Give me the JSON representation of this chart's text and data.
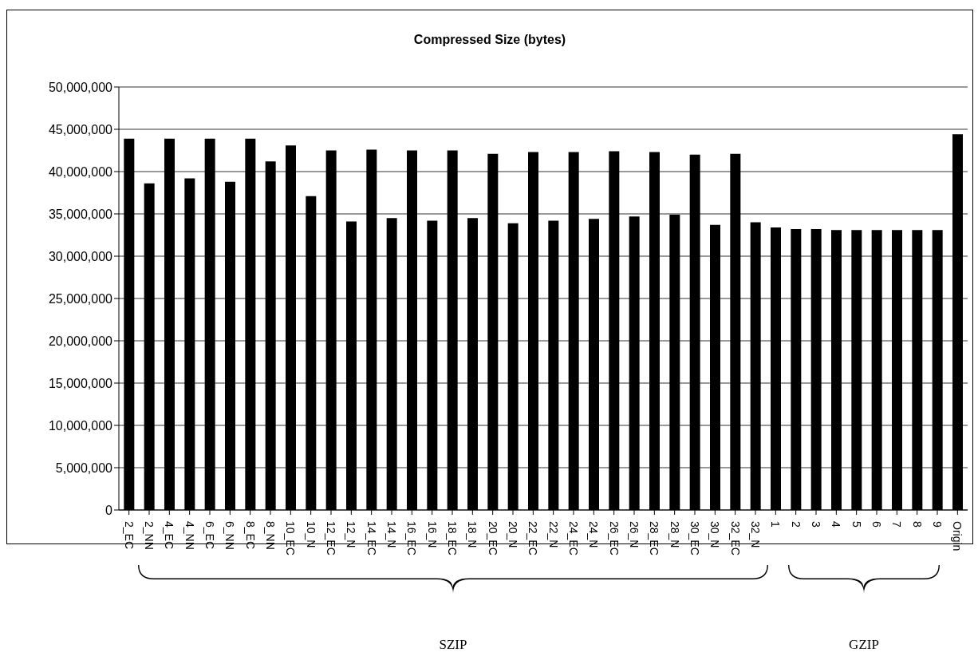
{
  "chart_data": {
    "type": "bar",
    "title": "Compressed Size (bytes)",
    "categories": [
      "2_EC",
      "2_NN",
      "4_EC",
      "4_NN",
      "6_EC",
      "6_NN",
      "8_EC",
      "8_NN",
      "10_EC",
      "10_N",
      "12_EC",
      "12_N",
      "14_EC",
      "14_N",
      "16_EC",
      "16_N",
      "18_EC",
      "18_N",
      "20_EC",
      "20_N",
      "22_EC",
      "22_N",
      "24_EC",
      "24_N",
      "26_EC",
      "26_N",
      "28_EC",
      "28_N",
      "30_EC",
      "30_N",
      "32_EC",
      "32_N",
      "1",
      "2",
      "3",
      "4",
      "5",
      "6",
      "7",
      "8",
      "9",
      "Origin"
    ],
    "values": [
      43900000,
      38600000,
      43900000,
      39200000,
      43900000,
      38800000,
      43900000,
      41200000,
      43100000,
      37100000,
      42500000,
      34100000,
      42600000,
      34500000,
      42500000,
      34200000,
      42500000,
      34500000,
      42100000,
      33900000,
      42300000,
      34200000,
      42300000,
      34400000,
      42400000,
      34700000,
      42300000,
      34900000,
      42000000,
      33700000,
      42100000,
      34000000,
      33400000,
      33200000,
      33200000,
      33100000,
      33100000,
      33100000,
      33100000,
      33100000,
      33100000,
      44400000
    ],
    "color": "#000000",
    "ylim": [
      0,
      50000000
    ],
    "yticks": [
      0,
      {
        "value": 5000000,
        "label": "5,000,000"
      },
      {
        "value": 10000000,
        "label": "10,000,000"
      },
      {
        "value": 15000000,
        "label": "15,000,000"
      },
      {
        "value": 20000000,
        "label": "20,000,000"
      },
      {
        "value": 25000000,
        "label": "25,000,000"
      },
      {
        "value": 30000000,
        "label": "30,000,000"
      },
      {
        "value": 35000000,
        "label": "35,000,000"
      },
      {
        "value": 40000000,
        "label": "40,000,000"
      },
      {
        "value": 45000000,
        "label": "45,000,000"
      },
      {
        "value": 50000000,
        "label": "50,000,000"
      }
    ],
    "grid": "y",
    "annotations": [
      "SZIP",
      "GZIP"
    ]
  }
}
